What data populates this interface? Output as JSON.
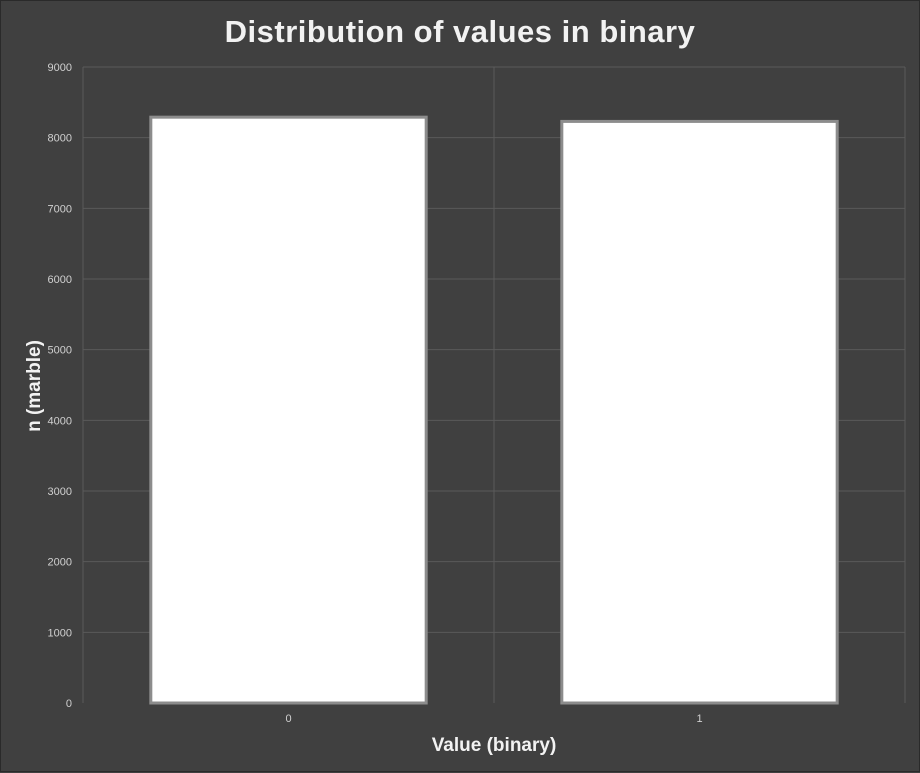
{
  "chart_data": {
    "type": "bar",
    "title": "Distribution of values in binary",
    "xlabel": "Value (binary)",
    "ylabel": "n (marble)",
    "categories": [
      "0",
      "1"
    ],
    "values": [
      8290,
      8230
    ],
    "ylim": [
      0,
      9000
    ],
    "yticks": [
      0,
      1000,
      2000,
      3000,
      4000,
      5000,
      6000,
      7000,
      8000,
      9000
    ],
    "grid": true,
    "legend": "none",
    "colors": {
      "background": "#404040",
      "bar_fill": "#ffffff",
      "bar_outline": "#8c8c8c",
      "gridline": "#5a5a5a",
      "text": "#f2f2f2"
    }
  }
}
